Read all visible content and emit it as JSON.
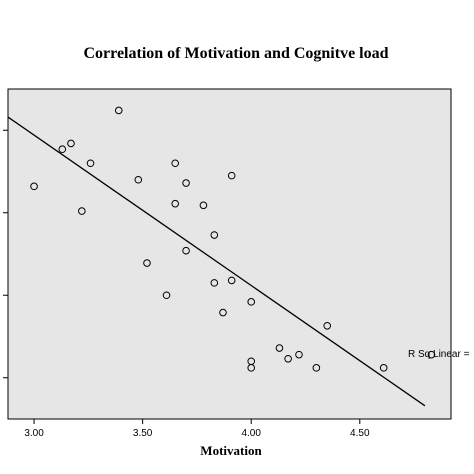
{
  "chart_data": {
    "type": "scatter",
    "title": "Correlation of Motivation and Cognitve load",
    "xlabel": "Motivation",
    "ylabel": "",
    "xlim": [
      2.88,
      4.92
    ],
    "ylim": [
      1.0,
      5.0
    ],
    "x_ticks": [
      3.0,
      3.5,
      4.0,
      4.5
    ],
    "x_tick_labels": [
      "3.00",
      "3.50",
      "4.00",
      "4.50"
    ],
    "y_ticks": [
      1.5,
      2.5,
      3.5,
      4.5
    ],
    "grid": false,
    "colors": {
      "plot_background": "#e6e6e6",
      "marker_edge": "#000000",
      "fit_line": "#000000"
    },
    "points": [
      {
        "x": 3.0,
        "y": 3.82
      },
      {
        "x": 3.13,
        "y": 4.27
      },
      {
        "x": 3.17,
        "y": 4.34
      },
      {
        "x": 3.22,
        "y": 3.52
      },
      {
        "x": 3.26,
        "y": 4.1
      },
      {
        "x": 3.39,
        "y": 4.74
      },
      {
        "x": 3.48,
        "y": 3.9
      },
      {
        "x": 3.52,
        "y": 2.89
      },
      {
        "x": 3.61,
        "y": 2.5
      },
      {
        "x": 3.65,
        "y": 4.1
      },
      {
        "x": 3.65,
        "y": 3.61
      },
      {
        "x": 3.7,
        "y": 3.86
      },
      {
        "x": 3.7,
        "y": 3.04
      },
      {
        "x": 3.78,
        "y": 3.59
      },
      {
        "x": 3.83,
        "y": 3.23
      },
      {
        "x": 3.83,
        "y": 2.65
      },
      {
        "x": 3.87,
        "y": 2.29
      },
      {
        "x": 3.91,
        "y": 3.95
      },
      {
        "x": 3.91,
        "y": 2.68
      },
      {
        "x": 4.0,
        "y": 2.42
      },
      {
        "x": 4.0,
        "y": 1.7
      },
      {
        "x": 4.0,
        "y": 1.62
      },
      {
        "x": 4.13,
        "y": 1.86
      },
      {
        "x": 4.17,
        "y": 1.73
      },
      {
        "x": 4.22,
        "y": 1.78
      },
      {
        "x": 4.3,
        "y": 1.62
      },
      {
        "x": 4.35,
        "y": 2.13
      },
      {
        "x": 4.61,
        "y": 1.62
      },
      {
        "x": 4.83,
        "y": 1.78
      }
    ],
    "fit_line": {
      "x": [
        2.88,
        4.8
      ],
      "y": [
        4.66,
        1.16
      ]
    },
    "annotation": "R Sq Linear ="
  }
}
